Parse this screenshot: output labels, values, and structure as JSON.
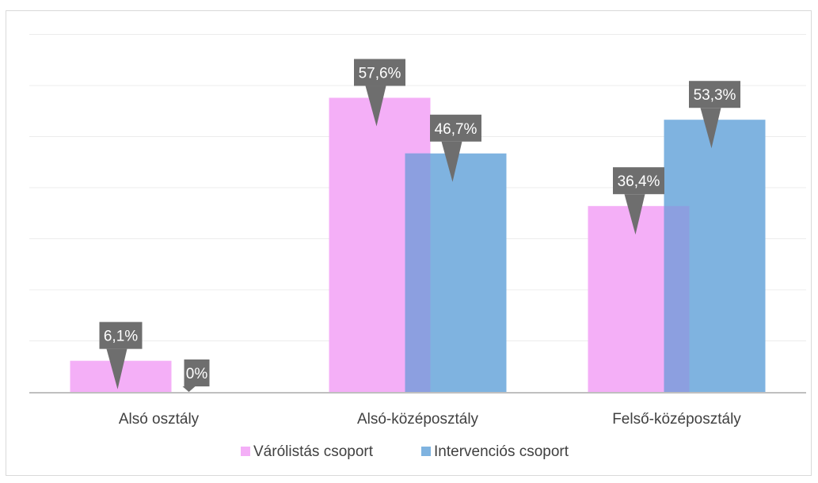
{
  "chart_data": {
    "type": "bar",
    "categories": [
      "Alsó osztály",
      "Alsó-középosztály",
      "Felső-középosztály"
    ],
    "series": [
      {
        "name": "Várólistás csoport",
        "values": [
          6.1,
          57.6,
          36.4
        ],
        "labels": [
          "6,1%",
          "57,6%",
          "36,4%"
        ],
        "color": "#f4aff7"
      },
      {
        "name": "Intervenciós csoport",
        "values": [
          0,
          46.7,
          53.3
        ],
        "labels": [
          "0%",
          "46,7%",
          "53,3%"
        ],
        "color": "#7fb3e0"
      }
    ],
    "overlap_color": "#8c9fe0",
    "ylim": [
      0,
      70
    ],
    "gridline_step": 10,
    "grid": true,
    "legend_position": "bottom",
    "data_label_bg": "#6e6e6e",
    "gridline_color": "#ececec",
    "axis_color": "#bfbfbf"
  }
}
